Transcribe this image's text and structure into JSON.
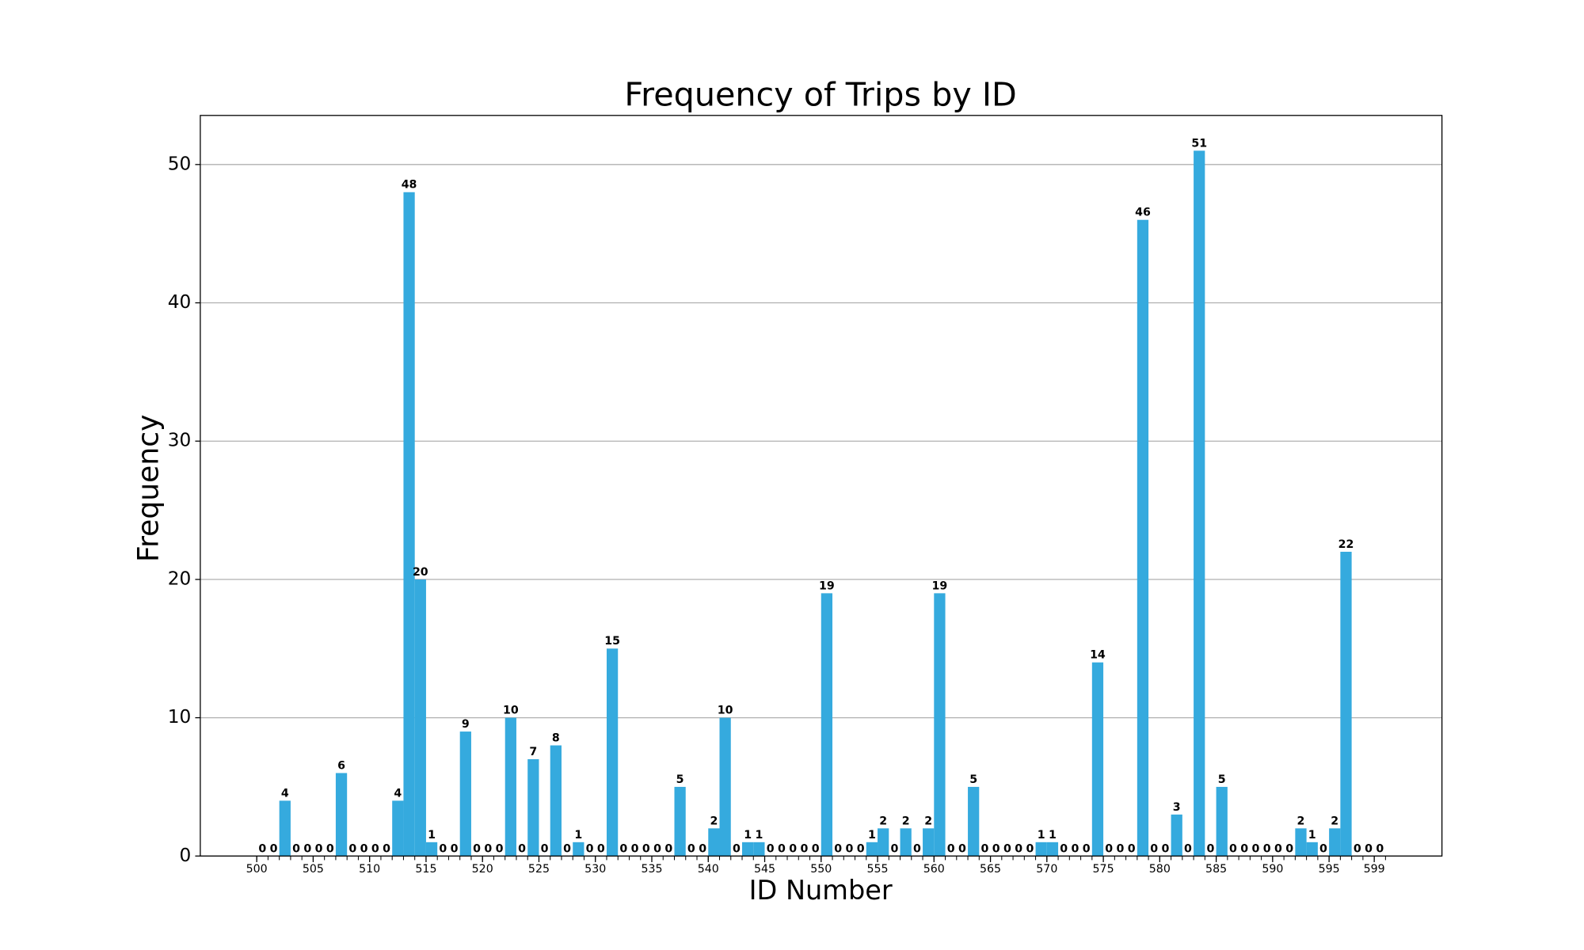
{
  "chart_data": {
    "type": "histogram",
    "title": "Frequency of Trips by ID",
    "xlabel": "ID Number",
    "ylabel": "Frequency",
    "bins": [
      500,
      501,
      502,
      503,
      504,
      505,
      506,
      507,
      508,
      509,
      510,
      511,
      512,
      513,
      514,
      515,
      516,
      517,
      518,
      519,
      520,
      521,
      522,
      523,
      524,
      525,
      526,
      527,
      528,
      529,
      530,
      531,
      532,
      533,
      534,
      535,
      536,
      537,
      538,
      539,
      540,
      541,
      542,
      543,
      544,
      545,
      546,
      547,
      548,
      549,
      550,
      551,
      552,
      553,
      554,
      555,
      556,
      557,
      558,
      559,
      560,
      561,
      562,
      563,
      564,
      565,
      566,
      567,
      568,
      569,
      570,
      571,
      572,
      573,
      574,
      575,
      576,
      577,
      578,
      579,
      580,
      581,
      582,
      583,
      584,
      585,
      586,
      587,
      588,
      589,
      590,
      591,
      592,
      593,
      594,
      595,
      596,
      597,
      598,
      599,
      600
    ],
    "counts": [
      0,
      0,
      4,
      0,
      0,
      0,
      0,
      6,
      0,
      0,
      0,
      0,
      4,
      48,
      20,
      1,
      0,
      0,
      9,
      0,
      0,
      0,
      10,
      0,
      7,
      0,
      8,
      0,
      1,
      0,
      0,
      15,
      0,
      0,
      0,
      0,
      0,
      5,
      0,
      0,
      2,
      10,
      0,
      1,
      1,
      0,
      0,
      0,
      0,
      0,
      19,
      0,
      0,
      0,
      1,
      2,
      0,
      2,
      0,
      2,
      19,
      0,
      0,
      5,
      0,
      0,
      0,
      0,
      0,
      1,
      1,
      0,
      0,
      0,
      14,
      0,
      0,
      0,
      46,
      0,
      0,
      3,
      0,
      51,
      0,
      5,
      0,
      0,
      0,
      0,
      0,
      0,
      2,
      1,
      0,
      2,
      22,
      0,
      0,
      0
    ],
    "color": "#35aade",
    "xlim": [
      495,
      605
    ],
    "ylim": [
      0,
      53.55
    ],
    "xticks": [
      500,
      505,
      510,
      515,
      520,
      525,
      530,
      535,
      540,
      545,
      550,
      555,
      560,
      565,
      570,
      575,
      580,
      585,
      590,
      595,
      599
    ],
    "yticks": [
      0,
      10,
      20,
      30,
      40,
      50
    ],
    "grid": true
  }
}
